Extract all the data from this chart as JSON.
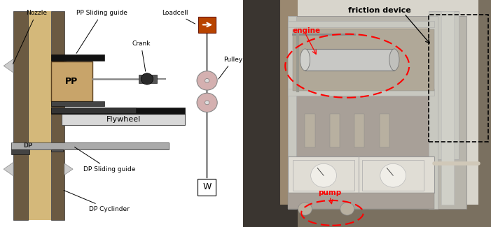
{
  "fig_width": 7.01,
  "fig_height": 3.25,
  "bg_color": "#ffffff",
  "wall_color": "#6b5a42",
  "panel_color": "#c8a46a",
  "panel_light": "#d4b87a",
  "dark_bar": "#1a1a1a",
  "mid_bar": "#555555",
  "gray_bar": "#888888",
  "flywheel_color": "#d8d8d8",
  "pp_color": "#c8a46a",
  "loadcell_color": "#b84400",
  "pulley_color": "#d4b0b0",
  "photo_bg": "#8a8070",
  "photo_frame": "#c8c0b0",
  "photo_machine": "#b0a898",
  "labels": {
    "nozzle": "Nozzle",
    "pp_sliding": "PP Sliding guide",
    "loadcell": "Loadcell",
    "crank": "Crank",
    "pulley": "Pulley",
    "flywheel": "Flywheel",
    "dp_sliding": "DP Sliding guide",
    "dp_cylinder": "DP Cyclinder",
    "pp": "PP",
    "dp": "DP",
    "weight": "W"
  },
  "photo_labels": {
    "friction": "friction device",
    "engine": "engine",
    "pump": "pump"
  },
  "ann_fs": 6.5,
  "photo_ann_fs": 8
}
